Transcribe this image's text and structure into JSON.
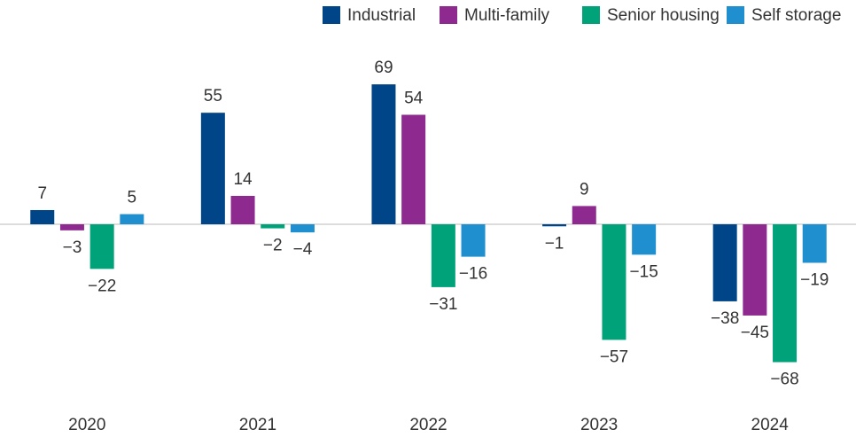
{
  "chart_data": {
    "type": "bar",
    "categories": [
      "2020",
      "2021",
      "2022",
      "2023",
      "2024"
    ],
    "series": [
      {
        "name": "Industrial",
        "color": "#004587",
        "values": [
          7,
          55,
          69,
          -1,
          -38
        ],
        "value_labels": [
          "7",
          "55",
          "69",
          "−1",
          "−38"
        ]
      },
      {
        "name": "Multi-family",
        "color": "#8e2a8f",
        "values": [
          -3,
          14,
          54,
          9,
          -45
        ],
        "value_labels": [
          "−3",
          "14",
          "54",
          "9",
          "−45"
        ]
      },
      {
        "name": "Senior housing",
        "color": "#00a27a",
        "values": [
          -22,
          -2,
          -31,
          -57,
          -68
        ],
        "value_labels": [
          "−22",
          "−2",
          "−31",
          "−57",
          "−68"
        ]
      },
      {
        "name": "Self storage",
        "color": "#1f8fcf",
        "values": [
          5,
          -4,
          -16,
          -15,
          -19
        ],
        "value_labels": [
          "5",
          "−4",
          "−16",
          "−15",
          "−19"
        ]
      }
    ],
    "ylim": [
      -80,
      80
    ],
    "legend": "top-right"
  }
}
